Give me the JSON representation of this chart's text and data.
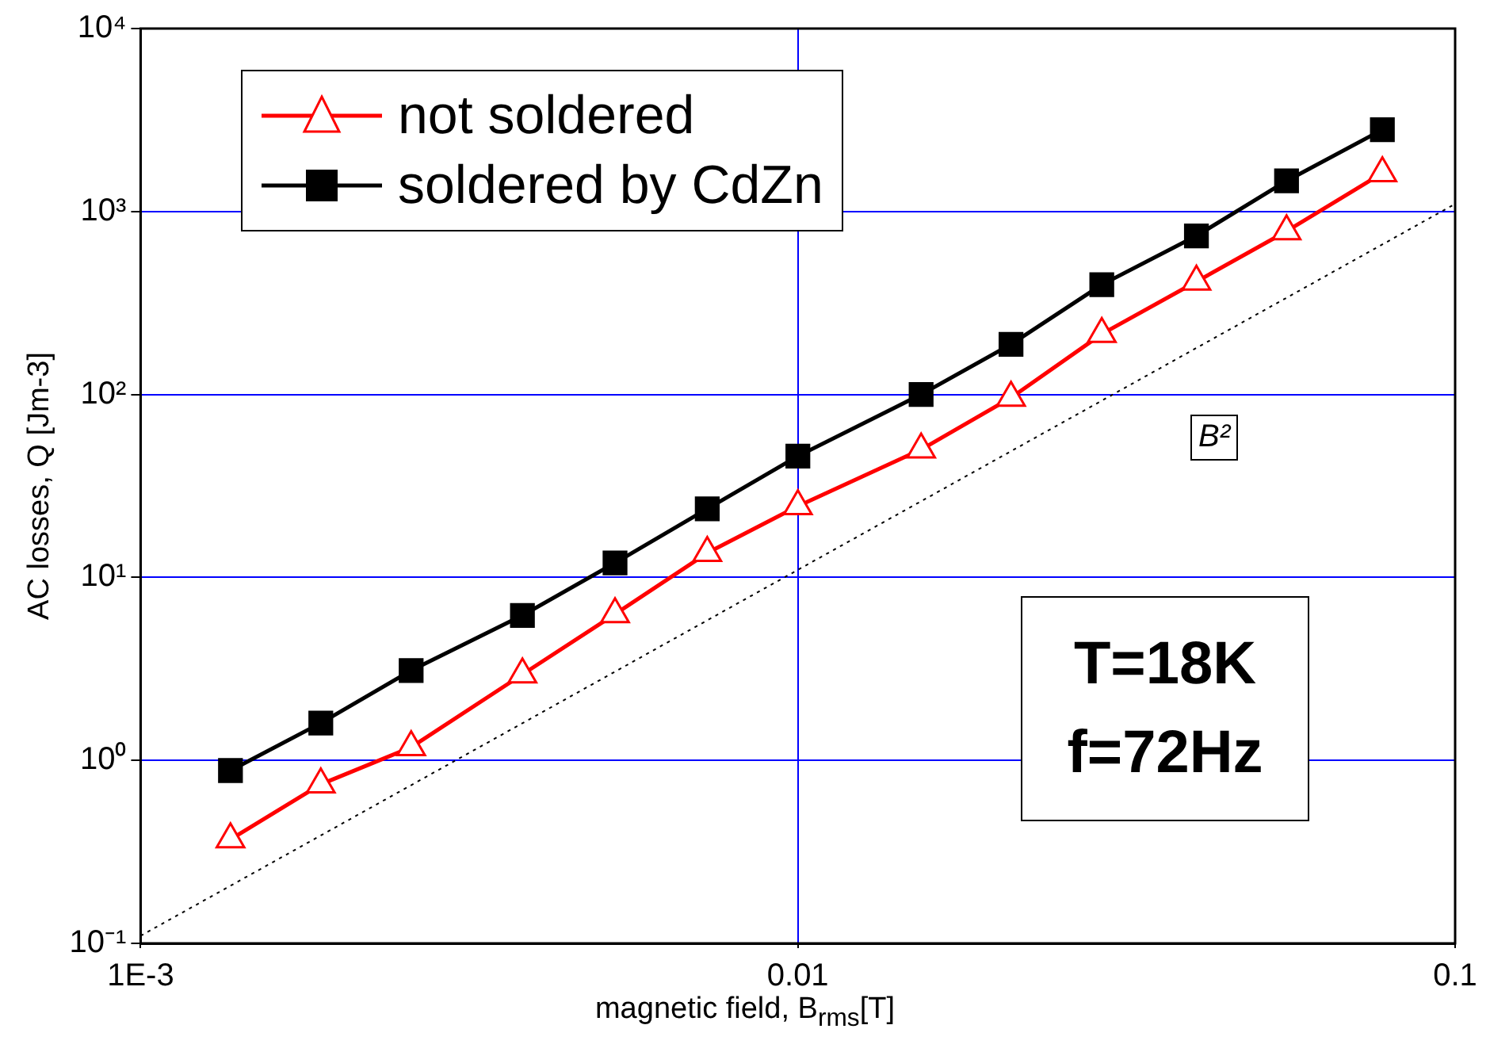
{
  "chart_data": {
    "type": "line",
    "xlabel": "magnetic field, B$_{rms}$[T]",
    "ylabel": "AC losses, Q [Jm-3]",
    "log": "xy",
    "xlim": [
      0.001,
      0.1
    ],
    "ylim": [
      0.1,
      10000
    ],
    "xticks": [
      {
        "value": 0.001,
        "label": "1E-3"
      },
      0.01,
      0.1
    ],
    "yticks": [
      {
        "value": 0.1,
        "label": "10⁻¹"
      },
      {
        "value": 1,
        "label": "10⁰"
      },
      {
        "value": 10,
        "label": "10¹"
      },
      {
        "value": 100,
        "label": "10²"
      },
      {
        "value": 1000,
        "label": "10³"
      },
      {
        "value": 10000,
        "label": "10⁴"
      }
    ],
    "grid": true,
    "legend": "top left",
    "x": [
      0.00137,
      0.00188,
      0.00258,
      0.00381,
      0.00527,
      0.00728,
      0.01,
      0.0154,
      0.0211,
      0.029,
      0.0404,
      0.0554,
      0.0775
    ],
    "series": [
      {
        "name": "not soldered",
        "color": "#ff0000",
        "marker": "triangle",
        "values": [
          0.37,
          0.74,
          1.18,
          2.95,
          6.3,
          13.6,
          24.5,
          50,
          96,
          214,
          414,
          780,
          1620
        ]
      },
      {
        "name": "soldered by CdZn",
        "color": "#000000",
        "marker": "square",
        "values": [
          0.88,
          1.6,
          3.1,
          6.2,
          12,
          23.7,
          46,
          100,
          188,
          398,
          736,
          1470,
          2800
        ]
      },
      {
        "type": "line",
        "color": "#000000",
        "line_style": "dotted",
        "marker": "none",
        "x": [
          0.001,
          0.1
        ],
        "values": [
          0.11,
          1100
        ]
      }
    ],
    "annotations": [
      {
        "text": "B²",
        "x": 0.043,
        "y": 58
      },
      "T=18K",
      "f=72Hz"
    ]
  }
}
